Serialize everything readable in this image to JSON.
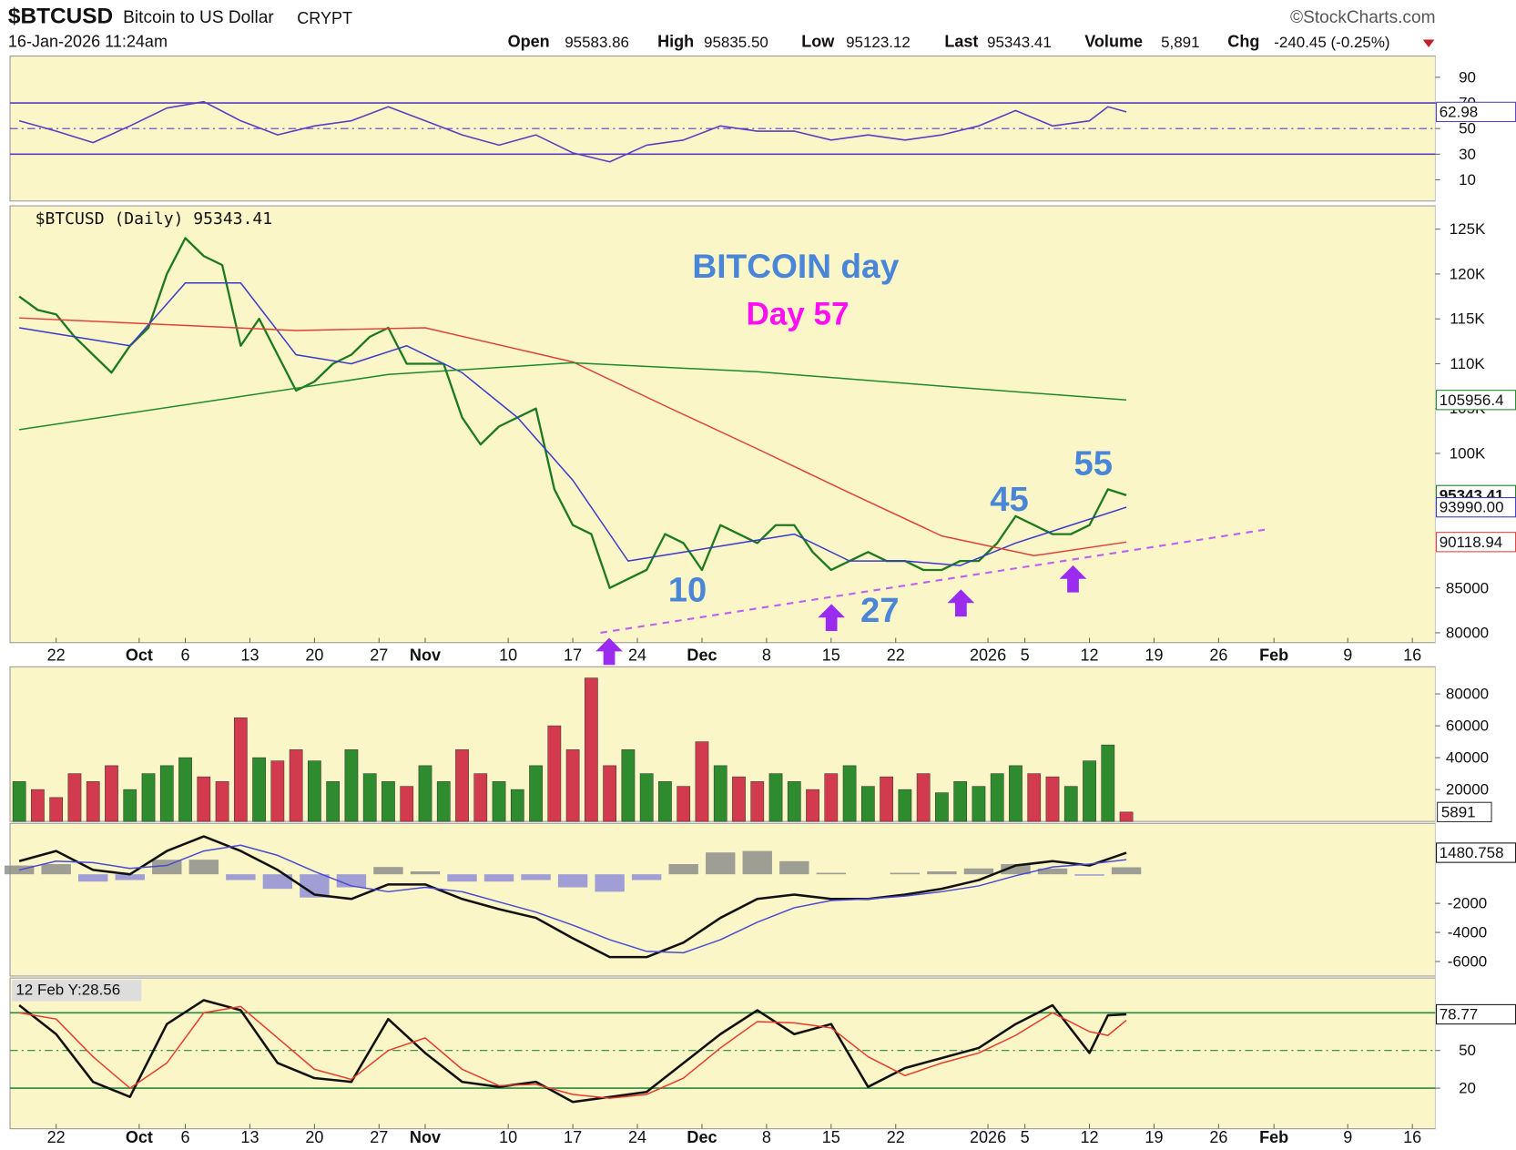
{
  "header": {
    "symbol": "$BTCUSD",
    "name": "Bitcoin to US Dollar",
    "exchange": "CRYPT",
    "source": "©StockCharts.com",
    "datetime": "16-Jan-2026 11:24am",
    "open_label": "Open",
    "open": "95583.86",
    "high_label": "High",
    "high": "95835.50",
    "low_label": "Low",
    "low": "95123.12",
    "last_label": "Last",
    "last": "95343.41",
    "volume_label": "Volume",
    "volume": "5,891",
    "chg_label": "Chg",
    "chg": "-240.45 (-0.25%)"
  },
  "chart_data": [
    {
      "type": "line",
      "panel": "rsi",
      "xlim": [
        -1,
        153.5
      ],
      "ylim": [
        -6.6,
        106.6
      ],
      "yticks": [
        10,
        30,
        50,
        70,
        90
      ],
      "levels": [
        30,
        70
      ],
      "midline": 50,
      "level_color": "#5a3fc0",
      "series": [
        {
          "name": "RSI",
          "color": "#5a3fc0",
          "label_last": true,
          "x": [
            0,
            4,
            8,
            12,
            16,
            20,
            24,
            28,
            32,
            36,
            40,
            44,
            48,
            52,
            56,
            60,
            64,
            68,
            72,
            76,
            80,
            84,
            88,
            92,
            96,
            100,
            104,
            108,
            112,
            116,
            118,
            120
          ],
          "values": [
            56,
            48,
            39,
            52,
            66,
            71,
            56,
            45,
            52,
            56,
            67,
            56,
            45,
            37,
            45,
            31,
            24,
            37,
            41,
            52,
            48,
            48,
            41,
            45,
            41,
            45,
            52,
            64,
            52,
            56,
            67,
            62.98
          ]
        }
      ]
    },
    {
      "type": "line",
      "panel": "price",
      "legend": "$BTCUSD (Daily) 95343.41",
      "xlim": [
        -1,
        153.5
      ],
      "ylim": [
        78900,
        127600
      ],
      "yticks": [
        80000,
        85000,
        {
          "value": 100000,
          "label": "100K"
        },
        {
          "value": 105000,
          "label": "105K"
        },
        {
          "value": 110000,
          "label": "110K"
        },
        {
          "value": 115000,
          "label": "115K"
        },
        {
          "value": 120000,
          "label": "120K"
        },
        {
          "value": 125000,
          "label": "125K"
        }
      ],
      "xticks": [
        {
          "value": 4,
          "label": "22"
        },
        {
          "value": 13,
          "label": "Oct"
        },
        {
          "value": 18,
          "label": "6"
        },
        {
          "value": 25,
          "label": "13"
        },
        {
          "value": 32,
          "label": "20"
        },
        {
          "value": 39,
          "label": "27"
        },
        {
          "value": 44,
          "label": "Nov"
        },
        {
          "value": 53,
          "label": "10"
        },
        {
          "value": 60,
          "label": "17"
        },
        {
          "value": 67,
          "label": "24"
        },
        {
          "value": 74,
          "label": "Dec"
        },
        {
          "value": 81,
          "label": "8"
        },
        {
          "value": 88,
          "label": "15"
        },
        {
          "value": 95,
          "label": "22"
        },
        {
          "value": 105,
          "label": "2026"
        },
        {
          "value": 109,
          "label": "5"
        },
        {
          "value": 116,
          "label": "12"
        },
        {
          "value": 123,
          "label": "19"
        },
        {
          "value": 130,
          "label": "26"
        },
        {
          "value": 136,
          "label": "Feb"
        },
        {
          "value": 144,
          "label": "9"
        },
        {
          "value": 151,
          "label": "16"
        }
      ],
      "annotations": [
        {
          "text": "BITCOIN day",
          "color": "#4a86d8"
        },
        {
          "text": "Day 57",
          "color": "#ff10f0"
        },
        {
          "text": "10",
          "color": "#4a86d8"
        },
        {
          "text": "27",
          "color": "#4a86d8"
        },
        {
          "text": "45",
          "color": "#4a86d8"
        },
        {
          "text": "55",
          "color": "#4a86d8"
        }
      ],
      "series": [
        {
          "name": "$BTCUSD",
          "color": "#1f7a1f",
          "width": 2.2,
          "label_last": true,
          "x": [
            0,
            2,
            4,
            6,
            8,
            10,
            12,
            14,
            16,
            18,
            20,
            22,
            24,
            26,
            28,
            30,
            32,
            34,
            36,
            38,
            40,
            42,
            44,
            46,
            48,
            50,
            52,
            54,
            56,
            58,
            60,
            62,
            64,
            66,
            68,
            70,
            72,
            74,
            76,
            78,
            80,
            82,
            84,
            86,
            88,
            90,
            92,
            94,
            96,
            98,
            100,
            102,
            104,
            106,
            108,
            110,
            112,
            114,
            116,
            118,
            120
          ],
          "values": [
            117500,
            116000,
            115500,
            113000,
            111000,
            109000,
            112000,
            114000,
            120000,
            124000,
            122000,
            121000,
            112000,
            115000,
            111000,
            107000,
            108000,
            110000,
            111000,
            113000,
            114000,
            110000,
            110000,
            110000,
            104000,
            101000,
            103000,
            104000,
            105000,
            96000,
            92000,
            91000,
            85000,
            86000,
            87000,
            91000,
            90000,
            87000,
            92000,
            91000,
            90000,
            92000,
            92000,
            89000,
            87000,
            88000,
            89000,
            88000,
            88000,
            87000,
            87000,
            88000,
            88000,
            90000,
            93000,
            92000,
            91000,
            91000,
            92000,
            96000,
            95343.41
          ]
        },
        {
          "name": "EMA",
          "color": "#3a3ac8",
          "width": 1.4,
          "label_last": true,
          "last_label": "93990.00",
          "x": [
            0,
            6,
            12,
            18,
            24,
            30,
            36,
            42,
            48,
            54,
            60,
            66,
            72,
            78,
            84,
            90,
            96,
            102,
            108,
            114,
            120
          ],
          "values": [
            114000,
            113000,
            112000,
            119000,
            119000,
            111000,
            110000,
            112000,
            109000,
            104000,
            97000,
            88000,
            89000,
            90000,
            91000,
            88000,
            88000,
            87500,
            90000,
            92000,
            93990
          ]
        },
        {
          "name": "SMA50",
          "color": "#e0403a",
          "width": 1.4,
          "label_last": true,
          "x": [
            0,
            30,
            44,
            60,
            70,
            80,
            90,
            100,
            110,
            120
          ],
          "values": [
            115100,
            113700,
            114000,
            110200,
            105300,
            100500,
            95600,
            90800,
            88600,
            90118.94
          ]
        },
        {
          "name": "SMA200",
          "color": "#1f8a2a",
          "width": 1.4,
          "label_last": true,
          "x": [
            0,
            40,
            60,
            80,
            100,
            120
          ],
          "values": [
            102650,
            108800,
            110100,
            109100,
            107500,
            105956.4
          ]
        },
        {
          "name": "Trendline",
          "color": "#c060f0",
          "width": 2,
          "dash": "7 6",
          "x": [
            63,
            135
          ],
          "values": [
            80000,
            91500
          ]
        }
      ]
    },
    {
      "type": "bar",
      "panel": "volume",
      "xlim": [
        -1,
        153.5
      ],
      "ylim": [
        0,
        97000
      ],
      "yticks": [
        20000,
        40000,
        60000,
        80000
      ],
      "up_color": "#2e8b2e",
      "down_color": "#d23a4e",
      "x": [
        0,
        2,
        4,
        6,
        8,
        10,
        12,
        14,
        16,
        18,
        20,
        22,
        24,
        26,
        28,
        30,
        32,
        34,
        36,
        38,
        40,
        42,
        44,
        46,
        48,
        50,
        52,
        54,
        56,
        58,
        60,
        62,
        64,
        66,
        68,
        70,
        72,
        74,
        76,
        78,
        80,
        82,
        84,
        86,
        88,
        90,
        92,
        94,
        96,
        98,
        100,
        102,
        104,
        106,
        108,
        110,
        112,
        114,
        116,
        118,
        120
      ],
      "values": [
        25000,
        20000,
        15000,
        30000,
        25000,
        35000,
        20000,
        30000,
        35000,
        40000,
        28000,
        25000,
        65000,
        40000,
        38000,
        45000,
        38000,
        25000,
        45000,
        30000,
        25000,
        22000,
        35000,
        25000,
        45000,
        30000,
        25000,
        20000,
        35000,
        60000,
        45000,
        90000,
        35000,
        45000,
        30000,
        25000,
        22000,
        50000,
        35000,
        28000,
        25000,
        30000,
        25000,
        20000,
        30000,
        35000,
        22000,
        28000,
        20000,
        30000,
        18000,
        25000,
        22000,
        30000,
        35000,
        30000,
        28000,
        22000,
        38000,
        48000,
        5891
      ]
    },
    {
      "type": "macd",
      "panel": "macd",
      "xlim": [
        -1,
        153.5
      ],
      "ylim": [
        -7000,
        3500
      ],
      "yticks": [
        -6000,
        -4000,
        -2000
      ],
      "x": [
        0,
        4,
        8,
        12,
        16,
        20,
        24,
        28,
        32,
        36,
        40,
        44,
        48,
        52,
        56,
        60,
        64,
        68,
        72,
        76,
        80,
        84,
        88,
        92,
        96,
        100,
        104,
        108,
        112,
        116,
        120
      ],
      "histogram": [
        600,
        700,
        -500,
        -400,
        1000,
        1000,
        -400,
        -1000,
        -1600,
        -900,
        500,
        200,
        -500,
        -500,
        -400,
        -900,
        -1200,
        -400,
        700,
        1500,
        1600,
        900,
        100,
        0,
        100,
        200,
        400,
        700,
        400,
        -100,
        480.76
      ],
      "hist_colors": [
        "#888888",
        "#8a8ad8"
      ],
      "series": [
        {
          "name": "MACD",
          "color": "#111111",
          "width": 2.4,
          "label_last": true,
          "values": [
            900,
            1600,
            300,
            0,
            1600,
            2600,
            1600,
            300,
            -1400,
            -1700,
            -700,
            -700,
            -1700,
            -2400,
            -3000,
            -4400,
            -5700,
            -5700,
            -4700,
            -3000,
            -1700,
            -1400,
            -1700,
            -1700,
            -1400,
            -1000,
            -400,
            600,
            900,
            600,
            1480.758
          ]
        },
        {
          "name": "Signal",
          "color": "#4a4ad0",
          "width": 1.4,
          "values": [
            300,
            900,
            800,
            400,
            600,
            1600,
            2000,
            1300,
            200,
            -800,
            -1200,
            -900,
            -1200,
            -1900,
            -2600,
            -3500,
            -4500,
            -5300,
            -5400,
            -4500,
            -3300,
            -2300,
            -1800,
            -1700,
            -1500,
            -1200,
            -800,
            -100,
            500,
            700,
            1000
          ]
        }
      ]
    },
    {
      "type": "line",
      "panel": "stochastic",
      "note": "12 Feb Y:28.56",
      "xlim": [
        -1,
        153.5
      ],
      "ylim": [
        -12.3,
        107.7
      ],
      "yticks": [
        20,
        50
      ],
      "levels": [
        20,
        80
      ],
      "midline": 50,
      "level_color": "#2a8a3a",
      "xticks": [
        {
          "value": 4,
          "label": "22"
        },
        {
          "value": 13,
          "label": "Oct"
        },
        {
          "value": 18,
          "label": "6"
        },
        {
          "value": 25,
          "label": "13"
        },
        {
          "value": 32,
          "label": "20"
        },
        {
          "value": 39,
          "label": "27"
        },
        {
          "value": 44,
          "label": "Nov"
        },
        {
          "value": 53,
          "label": "10"
        },
        {
          "value": 60,
          "label": "17"
        },
        {
          "value": 67,
          "label": "24"
        },
        {
          "value": 74,
          "label": "Dec"
        },
        {
          "value": 81,
          "label": "8"
        },
        {
          "value": 88,
          "label": "15"
        },
        {
          "value": 95,
          "label": "22"
        },
        {
          "value": 105,
          "label": "2026"
        },
        {
          "value": 109,
          "label": "5"
        },
        {
          "value": 116,
          "label": "12"
        },
        {
          "value": 123,
          "label": "19"
        },
        {
          "value": 130,
          "label": "26"
        },
        {
          "value": 136,
          "label": "Feb"
        },
        {
          "value": 144,
          "label": "9"
        },
        {
          "value": 151,
          "label": "16"
        }
      ],
      "series": [
        {
          "name": "%K",
          "color": "#111111",
          "width": 2.4,
          "label_last": true,
          "x": [
            0,
            4,
            8,
            12,
            16,
            20,
            24,
            28,
            32,
            36,
            40,
            44,
            48,
            52,
            56,
            60,
            64,
            68,
            72,
            76,
            80,
            84,
            88,
            92,
            96,
            100,
            104,
            108,
            112,
            116,
            118,
            120
          ],
          "values": [
            86,
            63,
            25,
            13,
            71,
            90,
            82,
            40,
            28,
            25,
            75,
            48,
            25,
            21,
            25,
            9,
            13,
            17,
            40,
            63,
            82,
            63,
            71,
            21,
            36,
            44,
            52,
            71,
            86,
            48,
            78,
            78.77
          ]
        },
        {
          "name": "%D",
          "color": "#e83a2a",
          "width": 1.4,
          "x": [
            0,
            4,
            8,
            12,
            16,
            20,
            24,
            28,
            32,
            36,
            40,
            44,
            48,
            52,
            56,
            60,
            64,
            68,
            72,
            76,
            80,
            84,
            88,
            92,
            96,
            100,
            104,
            108,
            112,
            116,
            118,
            120
          ],
          "values": [
            80,
            75,
            45,
            20,
            40,
            80,
            85,
            60,
            35,
            27,
            50,
            60,
            35,
            22,
            23,
            15,
            12,
            15,
            28,
            52,
            73,
            72,
            68,
            45,
            30,
            40,
            48,
            62,
            80,
            65,
            62,
            74
          ]
        }
      ]
    }
  ]
}
